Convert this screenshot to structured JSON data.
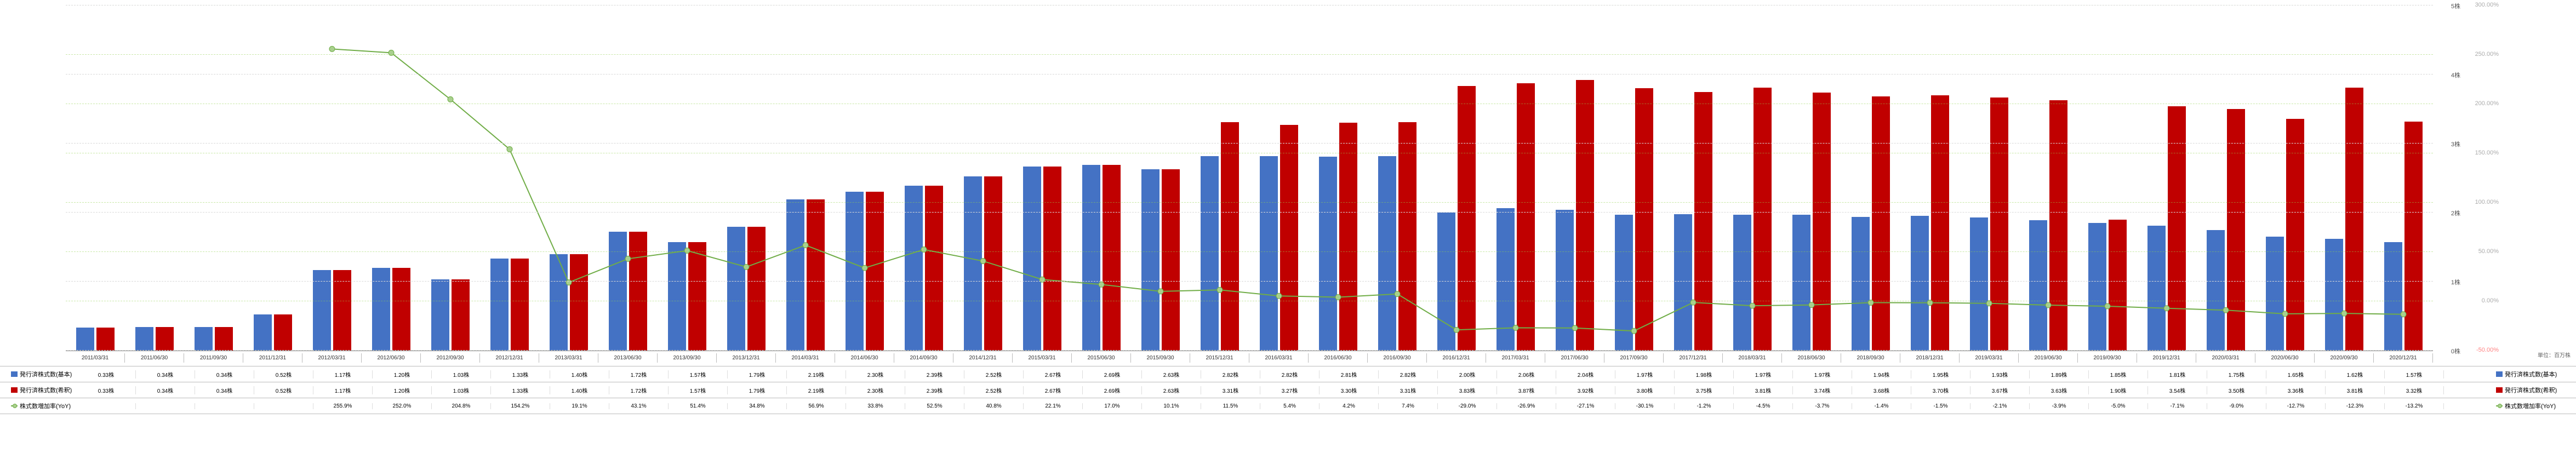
{
  "chart": {
    "type": "bar+line",
    "background_color": "#ffffff",
    "grid_color": "#92d050",
    "grid_color_minor": "#d9d9d9",
    "left_axis": {
      "min": 0,
      "max": 5,
      "ticks": [
        0,
        1,
        2,
        3,
        4,
        5
      ],
      "unit_suffix": "株"
    },
    "right_axis": {
      "min": -50,
      "max": 300,
      "ticks": [
        -50,
        0,
        50,
        100,
        150,
        200,
        250,
        300
      ],
      "unit_suffix": "%",
      "label_color": "#ff0000",
      "neg_color": "#ff0000"
    },
    "right_axis_unit_label": "単位：百万株",
    "series_basic": {
      "label": "発行済株式数(基本)",
      "color": "#4472c4"
    },
    "series_diluted": {
      "label": "発行済株式数(希釈)",
      "color": "#c00000"
    },
    "series_growth": {
      "label": "株式数増加率(YoY)",
      "color": "#70ad47",
      "marker_color": "#a9d08e",
      "marker_size": 5,
      "line_width": 2
    },
    "periods": [
      {
        "date": "2011/03/31",
        "basic": 0.33,
        "diluted": 0.33,
        "growth": null
      },
      {
        "date": "2011/06/30",
        "basic": 0.34,
        "diluted": 0.34,
        "growth": null
      },
      {
        "date": "2011/09/30",
        "basic": 0.34,
        "diluted": 0.34,
        "growth": null
      },
      {
        "date": "2011/12/31",
        "basic": 0.52,
        "diluted": 0.52,
        "growth": null
      },
      {
        "date": "2012/03/31",
        "basic": 1.17,
        "diluted": 1.17,
        "growth": 255.9
      },
      {
        "date": "2012/06/30",
        "basic": 1.2,
        "diluted": 1.2,
        "growth": 252.0
      },
      {
        "date": "2012/09/30",
        "basic": 1.03,
        "diluted": 1.03,
        "growth": 204.8
      },
      {
        "date": "2012/12/31",
        "basic": 1.33,
        "diluted": 1.33,
        "growth": 154.2
      },
      {
        "date": "2013/03/31",
        "basic": 1.4,
        "diluted": 1.4,
        "growth": 19.1
      },
      {
        "date": "2013/06/30",
        "basic": 1.72,
        "diluted": 1.72,
        "growth": 43.1
      },
      {
        "date": "2013/09/30",
        "basic": 1.57,
        "diluted": 1.57,
        "growth": 51.4
      },
      {
        "date": "2013/12/31",
        "basic": 1.79,
        "diluted": 1.79,
        "growth": 34.8
      },
      {
        "date": "2014/03/31",
        "basic": 2.19,
        "diluted": 2.19,
        "growth": 56.9
      },
      {
        "date": "2014/06/30",
        "basic": 2.3,
        "diluted": 2.3,
        "growth": 33.8
      },
      {
        "date": "2014/09/30",
        "basic": 2.39,
        "diluted": 2.39,
        "growth": 52.5
      },
      {
        "date": "2014/12/31",
        "basic": 2.52,
        "diluted": 2.52,
        "growth": 40.8
      },
      {
        "date": "2015/03/31",
        "basic": 2.67,
        "diluted": 2.67,
        "growth": 22.1
      },
      {
        "date": "2015/06/30",
        "basic": 2.69,
        "diluted": 2.69,
        "growth": 17.0
      },
      {
        "date": "2015/09/30",
        "basic": 2.63,
        "diluted": 2.63,
        "growth": 10.1
      },
      {
        "date": "2015/12/31",
        "basic": 2.82,
        "diluted": 3.31,
        "growth": 11.5
      },
      {
        "date": "2016/03/31",
        "basic": 2.82,
        "diluted": 3.27,
        "growth": 5.4
      },
      {
        "date": "2016/06/30",
        "basic": 2.81,
        "diluted": 3.3,
        "growth": 4.2
      },
      {
        "date": "2016/09/30",
        "basic": 2.82,
        "diluted": 3.31,
        "growth": 7.4
      },
      {
        "date": "2016/12/31",
        "basic": 2.0,
        "diluted": 3.83,
        "growth": -29.0
      },
      {
        "date": "2017/03/31",
        "basic": 2.06,
        "diluted": 3.87,
        "growth": -26.9
      },
      {
        "date": "2017/06/30",
        "basic": 2.04,
        "diluted": 3.92,
        "growth": -27.1
      },
      {
        "date": "2017/09/30",
        "basic": 1.97,
        "diluted": 3.8,
        "growth": -30.1
      },
      {
        "date": "2017/12/31",
        "basic": 1.98,
        "diluted": 3.75,
        "growth": -1.2
      },
      {
        "date": "2018/03/31",
        "basic": 1.97,
        "diluted": 3.81,
        "growth": -4.5
      },
      {
        "date": "2018/06/30",
        "basic": 1.97,
        "diluted": 3.74,
        "growth": -3.7
      },
      {
        "date": "2018/09/30",
        "basic": 1.94,
        "diluted": 3.68,
        "growth": -1.4
      },
      {
        "date": "2018/12/31",
        "basic": 1.95,
        "diluted": 3.7,
        "growth": -1.5
      },
      {
        "date": "2019/03/31",
        "basic": 1.93,
        "diluted": 3.67,
        "growth": -2.1
      },
      {
        "date": "2019/06/30",
        "basic": 1.89,
        "diluted": 3.63,
        "growth": -3.9
      },
      {
        "date": "2019/09/30",
        "basic": 1.85,
        "diluted": 1.9,
        "growth": -5.0
      },
      {
        "date": "2019/12/31",
        "basic": 1.81,
        "diluted": 3.54,
        "growth": -7.1
      },
      {
        "date": "2020/03/31",
        "basic": 1.75,
        "diluted": 3.5,
        "growth": -9.0
      },
      {
        "date": "2020/06/30",
        "basic": 1.65,
        "diluted": 3.36,
        "growth": -12.7
      },
      {
        "date": "2020/09/30",
        "basic": 1.62,
        "diluted": 3.81,
        "growth": -12.3
      },
      {
        "date": "2020/12/31",
        "basic": 1.57,
        "diluted": 3.32,
        "growth": -13.2
      }
    ]
  }
}
